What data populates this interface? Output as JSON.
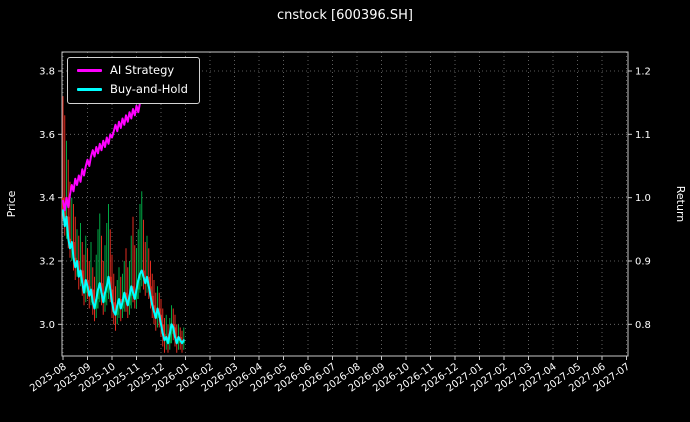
{
  "chart_data": {
    "type": "line+candlestick",
    "title": "cnstock [600396.SH]",
    "ylabel_left": "Price",
    "ylabel_right": "Return",
    "grid": true,
    "grid_color": "#777777",
    "background": "#000000",
    "legend_position": "upper left",
    "x_ticks": [
      "2025-08",
      "2025-09",
      "2025-10",
      "2025-11",
      "2025-12",
      "2026-01",
      "2026-02",
      "2026-03",
      "2026-04",
      "2026-05",
      "2026-06",
      "2026-07",
      "2026-08",
      "2026-09",
      "2026-10",
      "2026-11",
      "2026-12",
      "2027-01",
      "2027-02",
      "2027-03",
      "2027-04",
      "2027-05",
      "2027-06",
      "2027-07"
    ],
    "y_ticks_left": [
      3.0,
      3.2,
      3.4,
      3.6,
      3.8
    ],
    "y_ticks_right": [
      0.8,
      0.9,
      1.0,
      1.1,
      1.2
    ],
    "price_ylim": [
      2.9,
      3.86
    ],
    "return_ylim": [
      0.75,
      1.23
    ],
    "points_per_month": 14,
    "series": [
      {
        "name": "AI Strategy",
        "color": "#ff00ff",
        "axis": "price",
        "values": [
          3.39,
          3.36,
          3.4,
          3.37,
          3.41,
          3.44,
          3.42,
          3.46,
          3.44,
          3.47,
          3.45,
          3.49,
          3.47,
          3.5,
          3.52,
          3.5,
          3.53,
          3.55,
          3.53,
          3.56,
          3.54,
          3.57,
          3.55,
          3.58,
          3.56,
          3.59,
          3.57,
          3.6,
          3.59,
          3.61,
          3.63,
          3.61,
          3.64,
          3.62,
          3.65,
          3.63,
          3.66,
          3.64,
          3.67,
          3.65,
          3.68,
          3.66,
          3.69,
          3.67,
          3.7,
          3.72,
          3.7,
          3.73,
          3.71,
          3.74,
          3.72,
          3.7,
          3.73,
          3.75,
          3.73,
          3.76,
          3.78,
          3.79,
          3.77,
          3.75,
          3.73,
          3.75,
          3.74,
          3.72,
          3.7,
          3.72,
          3.74,
          3.73,
          3.71,
          3.72
        ]
      },
      {
        "name": "Buy-and-Hold",
        "color": "#00ffff",
        "axis": "price",
        "values": [
          3.36,
          3.31,
          3.34,
          3.27,
          3.24,
          3.26,
          3.21,
          3.18,
          3.2,
          3.15,
          3.17,
          3.13,
          3.1,
          3.14,
          3.12,
          3.09,
          3.11,
          3.07,
          3.05,
          3.08,
          3.11,
          3.13,
          3.1,
          3.07,
          3.1,
          3.12,
          3.15,
          3.11,
          3.07,
          3.04,
          3.03,
          3.06,
          3.08,
          3.05,
          3.07,
          3.1,
          3.08,
          3.06,
          3.09,
          3.12,
          3.1,
          3.08,
          3.11,
          3.14,
          3.16,
          3.17,
          3.15,
          3.13,
          3.15,
          3.12,
          3.09,
          3.06,
          3.04,
          3.02,
          3.05,
          3.03,
          3.0,
          2.97,
          2.95,
          2.96,
          2.94,
          2.97,
          3.0,
          2.99,
          2.96,
          2.94,
          2.96,
          2.95,
          2.94,
          2.95
        ]
      }
    ],
    "candles": {
      "up_color": "#00a844",
      "down_color": "#e22c20",
      "ohlc": [
        [
          3.4,
          3.72,
          3.33,
          3.36
        ],
        [
          3.36,
          3.66,
          3.28,
          3.31
        ],
        [
          3.31,
          3.58,
          3.27,
          3.34
        ],
        [
          3.34,
          3.52,
          3.24,
          3.27
        ],
        [
          3.27,
          3.45,
          3.21,
          3.24
        ],
        [
          3.24,
          3.4,
          3.2,
          3.26
        ],
        [
          3.26,
          3.38,
          3.17,
          3.21
        ],
        [
          3.21,
          3.34,
          3.14,
          3.18
        ],
        [
          3.18,
          3.3,
          3.15,
          3.2
        ],
        [
          3.2,
          3.28,
          3.11,
          3.15
        ],
        [
          3.15,
          3.32,
          3.12,
          3.17
        ],
        [
          3.17,
          3.26,
          3.09,
          3.13
        ],
        [
          3.13,
          3.22,
          3.06,
          3.1
        ],
        [
          3.1,
          3.28,
          3.07,
          3.14
        ],
        [
          3.14,
          3.24,
          3.08,
          3.12
        ],
        [
          3.12,
          3.2,
          3.05,
          3.09
        ],
        [
          3.09,
          3.26,
          3.06,
          3.11
        ],
        [
          3.11,
          3.18,
          3.03,
          3.07
        ],
        [
          3.07,
          3.15,
          3.01,
          3.05
        ],
        [
          3.05,
          3.22,
          3.02,
          3.08
        ],
        [
          3.08,
          3.3,
          3.05,
          3.11
        ],
        [
          3.11,
          3.35,
          3.07,
          3.13
        ],
        [
          3.13,
          3.28,
          3.06,
          3.1
        ],
        [
          3.1,
          3.2,
          3.03,
          3.07
        ],
        [
          3.07,
          3.25,
          3.04,
          3.1
        ],
        [
          3.1,
          3.32,
          3.06,
          3.12
        ],
        [
          3.12,
          3.38,
          3.08,
          3.15
        ],
        [
          3.15,
          3.3,
          3.07,
          3.11
        ],
        [
          3.11,
          3.22,
          3.02,
          3.07
        ],
        [
          3.07,
          3.16,
          3.0,
          3.04
        ],
        [
          3.04,
          3.12,
          2.98,
          3.03
        ],
        [
          3.03,
          3.14,
          3.0,
          3.06
        ],
        [
          3.06,
          3.18,
          3.02,
          3.08
        ],
        [
          3.08,
          3.15,
          3.01,
          3.05
        ],
        [
          3.05,
          3.16,
          3.02,
          3.07
        ],
        [
          3.07,
          3.2,
          3.04,
          3.1
        ],
        [
          3.1,
          3.24,
          3.04,
          3.08
        ],
        [
          3.08,
          3.18,
          3.02,
          3.06
        ],
        [
          3.06,
          3.2,
          3.03,
          3.09
        ],
        [
          3.09,
          3.28,
          3.05,
          3.12
        ],
        [
          3.12,
          3.34,
          3.07,
          3.1
        ],
        [
          3.1,
          3.25,
          3.05,
          3.08
        ],
        [
          3.08,
          3.24,
          3.05,
          3.11
        ],
        [
          3.11,
          3.3,
          3.08,
          3.14
        ],
        [
          3.14,
          3.38,
          3.1,
          3.16
        ],
        [
          3.16,
          3.42,
          3.12,
          3.17
        ],
        [
          3.17,
          3.33,
          3.11,
          3.15
        ],
        [
          3.15,
          3.26,
          3.09,
          3.13
        ],
        [
          3.13,
          3.28,
          3.1,
          3.15
        ],
        [
          3.15,
          3.24,
          3.08,
          3.12
        ],
        [
          3.12,
          3.2,
          3.05,
          3.09
        ],
        [
          3.09,
          3.16,
          3.02,
          3.06
        ],
        [
          3.06,
          3.14,
          3.0,
          3.04
        ],
        [
          3.04,
          3.1,
          2.98,
          3.02
        ],
        [
          3.02,
          3.12,
          2.99,
          3.05
        ],
        [
          3.05,
          3.1,
          2.99,
          3.03
        ],
        [
          3.03,
          3.08,
          2.96,
          3.0
        ],
        [
          3.0,
          3.05,
          2.93,
          2.97
        ],
        [
          2.97,
          3.02,
          2.91,
          2.95
        ],
        [
          2.95,
          3.03,
          2.92,
          2.96
        ],
        [
          2.96,
          3.0,
          2.91,
          2.94
        ],
        [
          2.94,
          3.02,
          2.92,
          2.97
        ],
        [
          2.97,
          3.06,
          2.94,
          3.0
        ],
        [
          3.0,
          3.05,
          2.95,
          2.99
        ],
        [
          2.99,
          3.03,
          2.93,
          2.96
        ],
        [
          2.96,
          3.0,
          2.91,
          2.94
        ],
        [
          2.94,
          3.0,
          2.92,
          2.96
        ],
        [
          2.96,
          2.99,
          2.92,
          2.95
        ],
        [
          2.95,
          2.98,
          2.91,
          2.94
        ],
        [
          2.94,
          2.99,
          2.92,
          2.95
        ]
      ]
    }
  }
}
